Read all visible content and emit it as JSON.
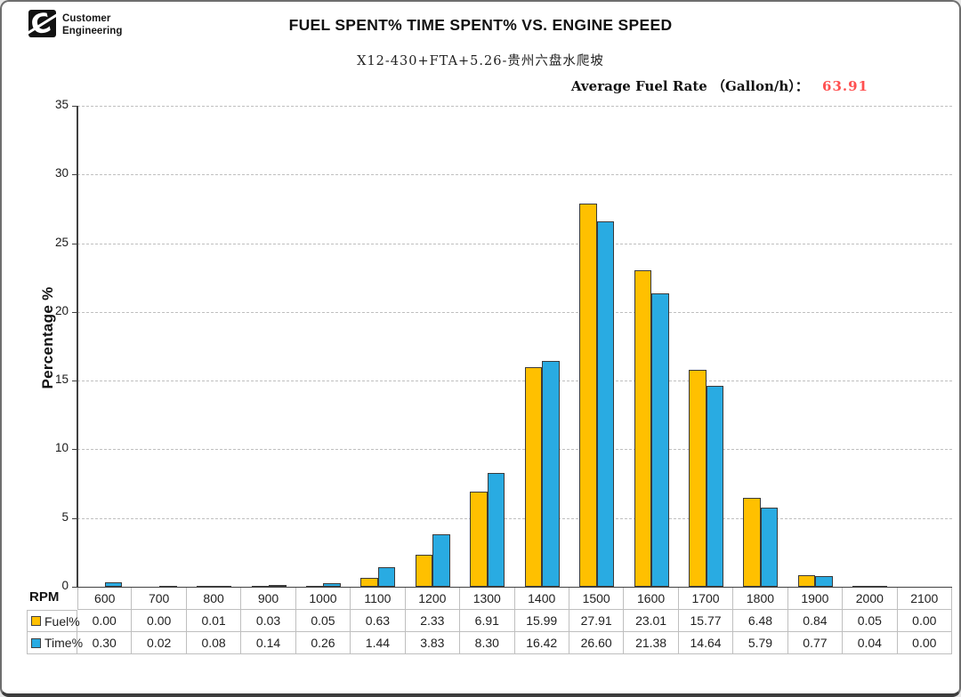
{
  "header": {
    "logo_lines": [
      "Customer",
      "Engineering"
    ],
    "logo_glyph": "C"
  },
  "chart_data": {
    "type": "bar",
    "title": "FUEL SPENT% TIME SPENT% VS. ENGINE SPEED",
    "subtitle": "X12-430+FTA+5.26-贵州六盘水爬坡",
    "annotation": {
      "label": "Average Fuel Rate （Gallon/h）：",
      "value": "63.91",
      "value_color": "#ff5050"
    },
    "xlabel": "RPM",
    "ylabel": "Percentage %",
    "ylim": [
      0,
      35
    ],
    "ytick_step": 5,
    "grid": "horizontal-dashed",
    "legend_position": "table-left",
    "categories": [
      "600",
      "700",
      "800",
      "900",
      "1000",
      "1100",
      "1200",
      "1300",
      "1400",
      "1500",
      "1600",
      "1700",
      "1800",
      "1900",
      "2000",
      "2100"
    ],
    "series": [
      {
        "name": "Fuel%",
        "color": "#FFC000",
        "values": [
          0.0,
          0.0,
          0.01,
          0.03,
          0.05,
          0.63,
          2.33,
          6.91,
          15.99,
          27.91,
          23.01,
          15.77,
          6.48,
          0.84,
          0.05,
          0.0
        ]
      },
      {
        "name": "Time%",
        "color": "#29ABE2",
        "values": [
          0.3,
          0.02,
          0.08,
          0.14,
          0.26,
          1.44,
          3.83,
          8.3,
          16.42,
          26.6,
          21.38,
          14.64,
          5.79,
          0.77,
          0.04,
          0.0
        ]
      }
    ]
  },
  "colors": {
    "grid": "#bfbfbf",
    "axis": "#404040",
    "bar_outline": "#3a3a3a",
    "table_border": "#bfbfbf"
  }
}
